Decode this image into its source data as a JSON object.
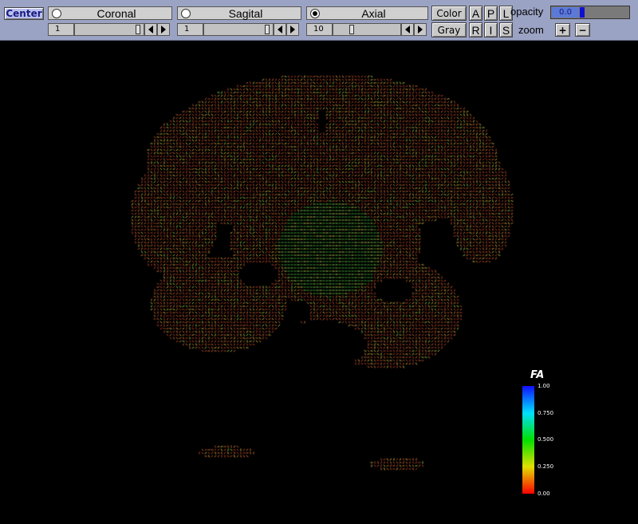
{
  "toolbar": {
    "center_label": "Center",
    "planes": [
      {
        "label": "Coronal",
        "selected": false,
        "slice": "1",
        "slider_fraction": 0.92
      },
      {
        "label": "Sagital",
        "selected": false,
        "slice": "1",
        "slider_fraction": 0.92
      },
      {
        "label": "Axial",
        "selected": true,
        "slice": "10",
        "slider_fraction": 0.25
      }
    ],
    "color_label": "Color",
    "gray_label": "Gray",
    "directions_top": [
      "A",
      "P",
      "L"
    ],
    "directions_bottom": [
      "R",
      "I",
      "S"
    ],
    "opacity_label": "opacity",
    "opacity_value": "0.0",
    "zoom_label": "zoom",
    "zoom_in_label": "+",
    "zoom_out_label": "−"
  },
  "colorbar": {
    "title": "FA",
    "ticks": [
      "1.00",
      "0.750",
      "0.500",
      "0.250",
      "0.00"
    ],
    "colors": [
      "#1010ff",
      "#00e0ff",
      "#00e000",
      "#e0e000",
      "#ff0000"
    ]
  },
  "view": {
    "background": "#000000"
  }
}
